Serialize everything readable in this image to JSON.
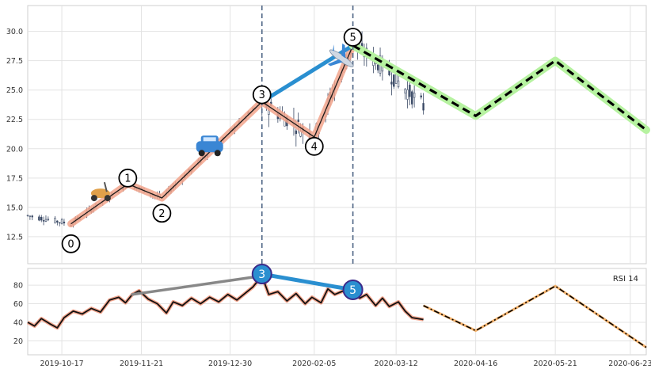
{
  "chart_data": [
    {
      "type": "line",
      "panel": "price",
      "ylim": [
        10.2,
        32.2
      ],
      "yticks": [
        12.5,
        15.0,
        17.5,
        20.0,
        22.5,
        25.0,
        27.5,
        30.0
      ],
      "ytick_labels": [
        "12.5",
        "15.0",
        "17.5",
        "20.0",
        "22.5",
        "25.0",
        "27.5",
        "30.0"
      ],
      "grid": true,
      "x_dates": [
        "2019-10-02",
        "2020-06-30"
      ],
      "xtick_labels": [
        "2019-10-17",
        "2019-11-21",
        "2019-12-30",
        "2020-02-05",
        "2020-03-12",
        "2020-04-16",
        "2020-05-21",
        "2020-06-23"
      ],
      "xtick_dates": [
        "2019-10-17",
        "2019-11-21",
        "2019-12-30",
        "2020-02-05",
        "2020-03-12",
        "2020-04-16",
        "2020-05-21",
        "2020-06-23"
      ],
      "vlines": [
        "2020-01-13",
        "2020-02-22"
      ],
      "wave_points": [
        {
          "label": "0",
          "date": "2019-10-21",
          "price": 13.6,
          "label_price": 11.9
        },
        {
          "label": "1",
          "date": "2019-11-15",
          "price": 17.0,
          "label_price": 17.5
        },
        {
          "label": "2",
          "date": "2019-11-30",
          "price": 15.8,
          "label_price": 14.5
        },
        {
          "label": "3",
          "date": "2020-01-13",
          "price": 24.0,
          "label_price": 24.6
        },
        {
          "label": "4",
          "date": "2020-02-05",
          "price": 21.0,
          "label_price": 20.2
        },
        {
          "label": "5",
          "date": "2020-02-22",
          "price": 28.8,
          "label_price": 29.5
        }
      ],
      "projection": [
        {
          "date": "2020-02-22",
          "price": 28.8
        },
        {
          "date": "2020-04-16",
          "price": 22.8
        },
        {
          "date": "2020-05-21",
          "price": 27.5
        },
        {
          "date": "2020-06-30",
          "price": 21.6
        }
      ],
      "trend_segment": [
        {
          "date": "2020-01-13",
          "price": 24.0
        },
        {
          "date": "2020-02-22",
          "price": 28.8
        }
      ],
      "candles_start_date": "2019-10-02",
      "candles_end_date": "2020-03-24",
      "icons": [
        "scooter-icon",
        "car-icon",
        "airplane-icon"
      ]
    },
    {
      "type": "line",
      "panel": "rsi",
      "legend": "RSI 14",
      "ylim": [
        5,
        98
      ],
      "yticks": [
        20,
        40,
        60,
        80
      ],
      "ytick_labels": [
        "20",
        "40",
        "60",
        "80"
      ],
      "grid": true,
      "rsi_points": [
        {
          "date": "2019-10-02",
          "value": 40
        },
        {
          "date": "2019-10-05",
          "value": 36
        },
        {
          "date": "2019-10-08",
          "value": 44
        },
        {
          "date": "2019-10-12",
          "value": 38
        },
        {
          "date": "2019-10-15",
          "value": 34
        },
        {
          "date": "2019-10-18",
          "value": 45
        },
        {
          "date": "2019-10-22",
          "value": 52
        },
        {
          "date": "2019-10-26",
          "value": 49
        },
        {
          "date": "2019-10-30",
          "value": 55
        },
        {
          "date": "2019-11-03",
          "value": 51
        },
        {
          "date": "2019-11-07",
          "value": 64
        },
        {
          "date": "2019-11-11",
          "value": 67
        },
        {
          "date": "2019-11-14",
          "value": 61
        },
        {
          "date": "2019-11-17",
          "value": 70
        },
        {
          "date": "2019-11-20",
          "value": 74
        },
        {
          "date": "2019-11-24",
          "value": 65
        },
        {
          "date": "2019-11-28",
          "value": 60
        },
        {
          "date": "2019-12-02",
          "value": 50
        },
        {
          "date": "2019-12-05",
          "value": 62
        },
        {
          "date": "2019-12-09",
          "value": 58
        },
        {
          "date": "2019-12-13",
          "value": 66
        },
        {
          "date": "2019-12-17",
          "value": 60
        },
        {
          "date": "2019-12-21",
          "value": 67
        },
        {
          "date": "2019-12-25",
          "value": 62
        },
        {
          "date": "2019-12-29",
          "value": 70
        },
        {
          "date": "2020-01-02",
          "value": 64
        },
        {
          "date": "2020-01-06",
          "value": 72
        },
        {
          "date": "2020-01-09",
          "value": 78
        },
        {
          "date": "2020-01-13",
          "value": 90
        },
        {
          "date": "2020-01-16",
          "value": 70
        },
        {
          "date": "2020-01-20",
          "value": 73
        },
        {
          "date": "2020-01-24",
          "value": 63
        },
        {
          "date": "2020-01-28",
          "value": 71
        },
        {
          "date": "2020-02-01",
          "value": 60
        },
        {
          "date": "2020-02-04",
          "value": 67
        },
        {
          "date": "2020-02-08",
          "value": 61
        },
        {
          "date": "2020-02-11",
          "value": 76
        },
        {
          "date": "2020-02-14",
          "value": 70
        },
        {
          "date": "2020-02-18",
          "value": 74
        },
        {
          "date": "2020-02-22",
          "value": 75
        },
        {
          "date": "2020-02-25",
          "value": 66
        },
        {
          "date": "2020-02-28",
          "value": 70
        },
        {
          "date": "2020-03-03",
          "value": 58
        },
        {
          "date": "2020-03-06",
          "value": 66
        },
        {
          "date": "2020-03-09",
          "value": 57
        },
        {
          "date": "2020-03-13",
          "value": 62
        },
        {
          "date": "2020-03-16",
          "value": 52
        },
        {
          "date": "2020-03-19",
          "value": 45
        },
        {
          "date": "2020-03-24",
          "value": 43
        }
      ],
      "rsi_projection": [
        {
          "date": "2020-03-24",
          "value": 58
        },
        {
          "date": "2020-04-16",
          "value": 31
        },
        {
          "date": "2020-05-21",
          "value": 79
        },
        {
          "date": "2020-06-30",
          "value": 13
        }
      ],
      "divergence_lines": [
        {
          "from": {
            "date": "2019-11-17",
            "value": 70
          },
          "to": {
            "date": "2020-01-13",
            "value": 90
          }
        },
        {
          "from": {
            "date": "2020-01-13",
            "value": 92
          },
          "to": {
            "date": "2020-02-22",
            "value": 75
          }
        }
      ],
      "markers": [
        {
          "label": "3",
          "date": "2020-01-13",
          "value": 92
        },
        {
          "label": "5",
          "date": "2020-02-22",
          "value": 75
        }
      ]
    }
  ]
}
